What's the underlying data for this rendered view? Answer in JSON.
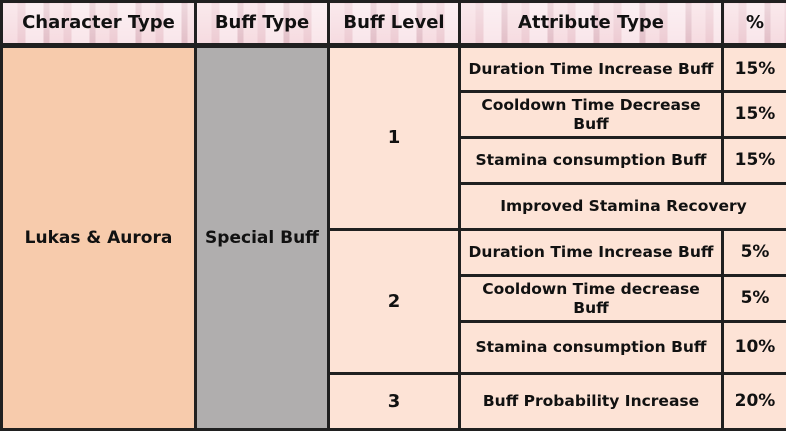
{
  "headers": {
    "character_type": "Character Type",
    "buff_type": "Buff Type",
    "buff_level": "Buff Level",
    "attribute_type": "Attribute Type",
    "percent": "%"
  },
  "character": "Lukas & Aurora",
  "buff_type": "Special Buff",
  "levels": [
    {
      "level": "1",
      "attributes": [
        {
          "name": "Duration Time Increase Buff",
          "percent": "15%"
        },
        {
          "name": "Cooldown Time Decrease Buff",
          "percent": "15%"
        },
        {
          "name": "Stamina consumption Buff",
          "percent": "15%"
        },
        {
          "name": "Improved Stamina Recovery",
          "percent": ""
        }
      ]
    },
    {
      "level": "2",
      "attributes": [
        {
          "name": "Duration Time Increase Buff",
          "percent": "5%"
        },
        {
          "name": "Cooldown Time decrease Buff",
          "percent": "5%"
        },
        {
          "name": "Stamina consumption Buff",
          "percent": "10%"
        }
      ]
    },
    {
      "level": "3",
      "attributes": [
        {
          "name": "Buff Probability Increase",
          "percent": "20%"
        }
      ]
    }
  ],
  "colors": {
    "header_bg": "#f3cfd6",
    "character_bg": "#f7cbac",
    "buff_type_bg": "#b0aeae",
    "cell_bg": "#fde3d6",
    "border": "#202020"
  }
}
